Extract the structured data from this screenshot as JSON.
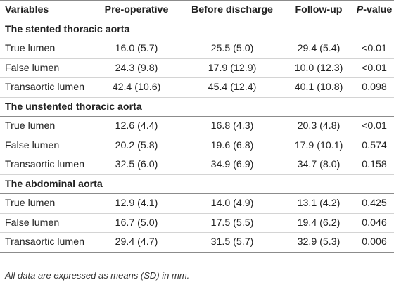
{
  "table": {
    "headers": {
      "variables": "Variables",
      "pre_operative": "Pre-operative",
      "before_discharge": "Before discharge",
      "follow_up": "Follow-up",
      "p_value_prefix": "P",
      "p_value_suffix": "-value"
    },
    "sections": [
      {
        "title": "The stented thoracic aorta",
        "rows": [
          {
            "variable": "True lumen",
            "pre": "16.0 (5.7)",
            "discharge": "25.5 (5.0)",
            "follow": "29.4 (5.4)",
            "p": "<0.01"
          },
          {
            "variable": "False lumen",
            "pre": "24.3 (9.8)",
            "discharge": "17.9 (12.9)",
            "follow": "10.0 (12.3)",
            "p": "<0.01"
          },
          {
            "variable": "Transaortic lumen",
            "pre": "42.4 (10.6)",
            "discharge": "45.4 (12.4)",
            "follow": "40.1 (10.8)",
            "p": "0.098"
          }
        ]
      },
      {
        "title": "The unstented thoracic aorta",
        "rows": [
          {
            "variable": "True lumen",
            "pre": "12.6 (4.4)",
            "discharge": "16.8 (4.3)",
            "follow": "20.3 (4.8)",
            "p": "<0.01"
          },
          {
            "variable": "False lumen",
            "pre": "20.2 (5.8)",
            "discharge": "19.6 (6.8)",
            "follow": "17.9 (10.1)",
            "p": "0.574"
          },
          {
            "variable": "Transaortic lumen",
            "pre": "32.5 (6.0)",
            "discharge": "34.9 (6.9)",
            "follow": "34.7 (8.0)",
            "p": "0.158"
          }
        ]
      },
      {
        "title": "The abdominal aorta",
        "rows": [
          {
            "variable": "True lumen",
            "pre": "12.9 (4.1)",
            "discharge": "14.0 (4.9)",
            "follow": "13.1 (4.2)",
            "p": "0.425"
          },
          {
            "variable": "False lumen",
            "pre": "16.7 (5.0)",
            "discharge": "17.5 (5.5)",
            "follow": "19.4 (6.2)",
            "p": "0.046"
          },
          {
            "variable": "Transaortic lumen",
            "pre": "29.4 (4.7)",
            "discharge": "31.5 (5.7)",
            "follow": "32.9 (5.3)",
            "p": "0.006"
          }
        ]
      }
    ],
    "footnote": "All data are expressed as means (SD) in mm."
  }
}
